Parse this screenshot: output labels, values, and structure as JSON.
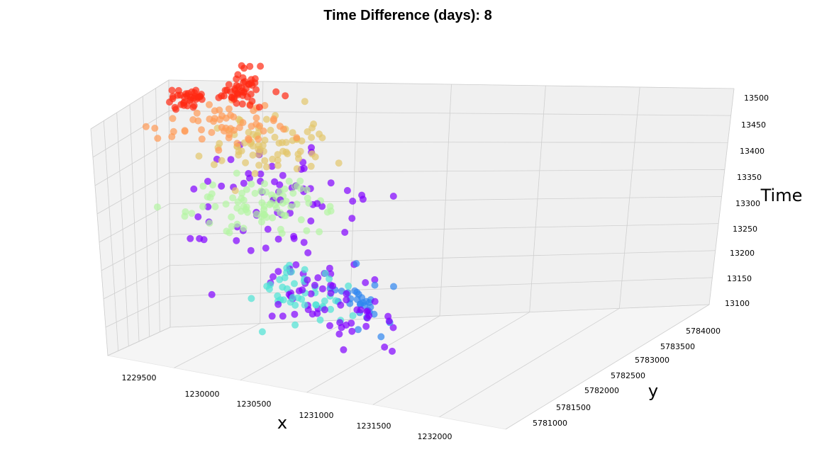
{
  "chart_data": {
    "type": "scatter",
    "title": "Time Difference (days): 8",
    "xlabel": "x",
    "ylabel": "y",
    "zlabel": "Time",
    "x_ticks": [
      "1229500",
      "1230000",
      "1230500",
      "1231000",
      "1231500",
      "1232000"
    ],
    "y_ticks": [
      "5781000",
      "5781500",
      "5782000",
      "5782500",
      "5783000",
      "5783500",
      "5784000"
    ],
    "z_ticks": [
      "13100",
      "13150",
      "13200",
      "13250",
      "13300",
      "13350",
      "13400",
      "13450",
      "13500"
    ],
    "xlim": [
      1229300,
      1232300
    ],
    "ylim": [
      5780800,
      5784300
    ],
    "zlim": [
      13100,
      13510
    ],
    "grid": true,
    "colormap": "rainbow",
    "colors": {
      "pane_bg": "#f2f2f2",
      "grid": "#cfcfcf",
      "purple": "#8000ff",
      "blue": "#2f86f0",
      "cyan": "#4de3d4",
      "green": "#b3f5a3",
      "yellow": "#e3c66b",
      "orange": "#ff9a55",
      "red": "#ff2a12"
    },
    "clusters": [
      {
        "color": "purple",
        "n": 60,
        "x": 1231400,
        "y": 5783000,
        "z": 13130,
        "sx": 320,
        "sy": 500,
        "sz": 15
      },
      {
        "color": "blue",
        "n": 30,
        "x": 1231850,
        "y": 5783100,
        "z": 13120,
        "sx": 120,
        "sy": 250,
        "sz": 10
      },
      {
        "color": "cyan",
        "n": 45,
        "x": 1231150,
        "y": 5783050,
        "z": 13140,
        "sx": 300,
        "sy": 350,
        "sz": 15
      },
      {
        "color": "purple",
        "n": 70,
        "x": 1230800,
        "y": 5783200,
        "z": 13300,
        "sx": 550,
        "sy": 600,
        "sz": 45
      },
      {
        "color": "green",
        "n": 85,
        "x": 1230600,
        "y": 5783100,
        "z": 13320,
        "sx": 350,
        "sy": 500,
        "sz": 15
      },
      {
        "color": "yellow",
        "n": 75,
        "x": 1230800,
        "y": 5783400,
        "z": 13400,
        "sx": 350,
        "sy": 450,
        "sz": 12
      },
      {
        "color": "orange",
        "n": 55,
        "x": 1230200,
        "y": 5783300,
        "z": 13450,
        "sx": 350,
        "sy": 350,
        "sz": 12
      },
      {
        "color": "red",
        "n": 35,
        "x": 1229750,
        "y": 5783700,
        "z": 13490,
        "sx": 150,
        "sy": 120,
        "sz": 8
      },
      {
        "color": "red",
        "n": 50,
        "x": 1230550,
        "y": 5784000,
        "z": 13480,
        "sx": 200,
        "sy": 200,
        "sz": 10
      }
    ]
  }
}
